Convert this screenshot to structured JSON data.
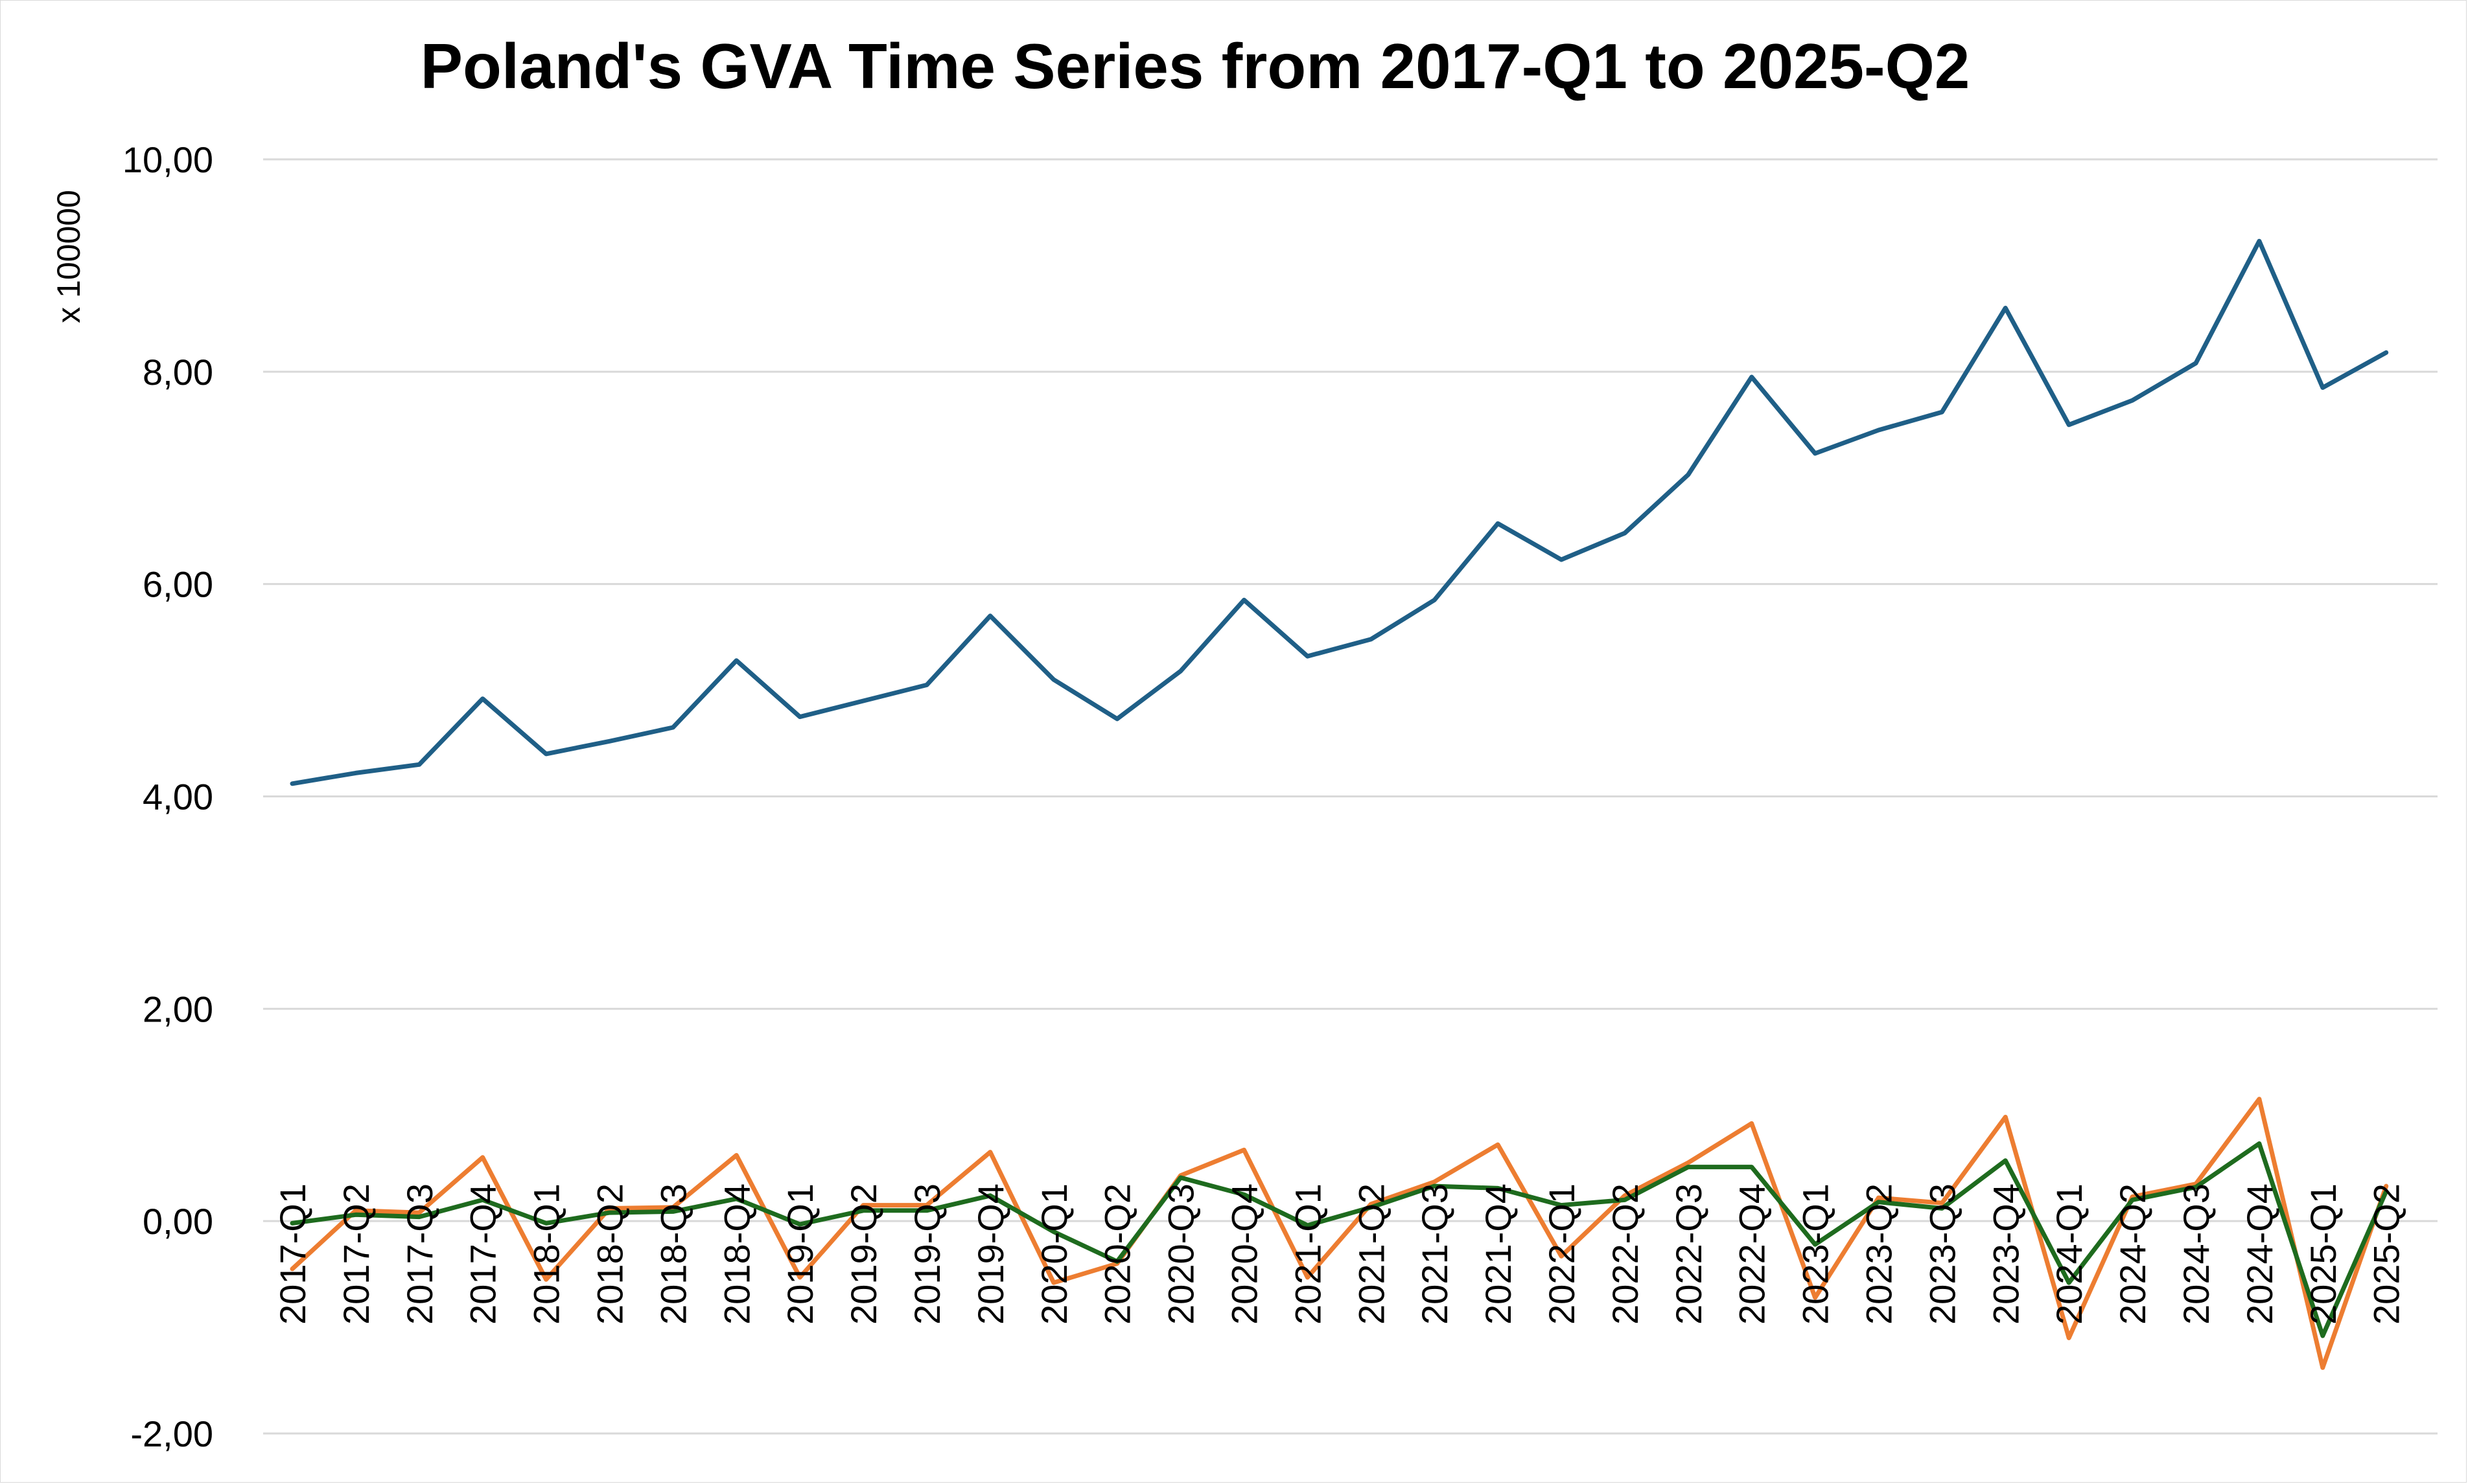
{
  "chart_data": {
    "type": "line",
    "title": "Poland's GVA Time Series from 2017-Q1 to 2025-Q2",
    "ylabel": "x 100000",
    "xlabel": "",
    "ylim": [
      -2,
      10
    ],
    "yticks": [
      -2,
      0,
      2,
      4,
      6,
      8,
      10
    ],
    "ytick_labels": [
      "-2,00",
      "0,00",
      "2,00",
      "4,00",
      "6,00",
      "8,00",
      "10,00"
    ],
    "grid": true,
    "legend": "none",
    "categories": [
      "2017-Q1",
      "2017-Q2",
      "2017-Q3",
      "2017-Q4",
      "2018-Q1",
      "2018-Q2",
      "2018-Q3",
      "2018-Q4",
      "2019-Q1",
      "2019-Q2",
      "2019-Q3",
      "2019-Q4",
      "2020-Q1",
      "2020-Q2",
      "2020-Q3",
      "2020-Q4",
      "2021-Q1",
      "2021-Q2",
      "2021-Q3",
      "2021-Q4",
      "2022-Q1",
      "2022-Q2",
      "2022-Q3",
      "2022-Q4",
      "2023-Q1",
      "2023-Q2",
      "2023-Q3",
      "2023-Q4",
      "2024-Q1",
      "2024-Q2",
      "2024-Q3",
      "2024-Q4",
      "2025-Q1",
      "2025-Q2"
    ],
    "series": [
      {
        "color": "#1f5f87",
        "values": [
          4.12,
          4.22,
          4.3,
          4.92,
          4.4,
          4.52,
          4.65,
          5.28,
          4.75,
          4.9,
          5.05,
          5.7,
          5.1,
          4.73,
          5.18,
          5.85,
          5.32,
          5.48,
          5.85,
          6.57,
          6.23,
          6.48,
          7.03,
          7.95,
          7.23,
          7.45,
          7.62,
          8.6,
          7.5,
          7.73,
          8.08,
          9.23,
          7.85,
          8.18
        ]
      },
      {
        "color": "#ed7d31",
        "values": [
          -0.45,
          0.1,
          0.08,
          0.6,
          -0.55,
          0.12,
          0.13,
          0.62,
          -0.53,
          0.15,
          0.15,
          0.65,
          -0.58,
          -0.4,
          0.43,
          0.67,
          -0.53,
          0.16,
          0.37,
          0.72,
          -0.33,
          0.24,
          0.55,
          0.92,
          -0.72,
          0.22,
          0.17,
          0.98,
          -1.1,
          0.23,
          0.35,
          1.15,
          -1.38,
          0.33
        ]
      },
      {
        "color": "#1e6b1e",
        "values": [
          -0.02,
          0.06,
          0.04,
          0.2,
          -0.02,
          0.08,
          0.09,
          0.21,
          -0.03,
          0.1,
          0.1,
          0.24,
          -0.1,
          -0.38,
          0.41,
          0.25,
          -0.04,
          0.13,
          0.33,
          0.31,
          0.15,
          0.2,
          0.51,
          0.51,
          -0.22,
          0.18,
          0.12,
          0.57,
          -0.58,
          0.2,
          0.32,
          0.73,
          -1.08,
          0.28
        ]
      }
    ]
  }
}
